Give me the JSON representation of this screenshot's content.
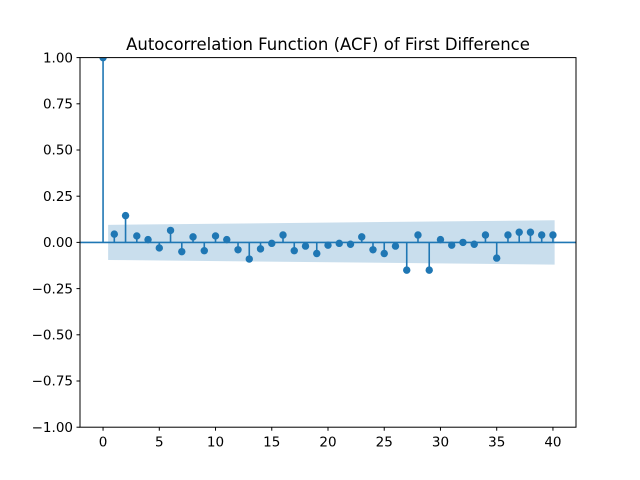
{
  "figure": {
    "background": "#ffffff",
    "accent_color": "#1f77b4",
    "band_opacity": 0.24,
    "spine_color": "#000000"
  },
  "chart_data": {
    "type": "stem",
    "title": "Autocorrelation Function (ACF) of First Difference",
    "xlabel": "",
    "ylabel": "",
    "x": [
      0,
      1,
      2,
      3,
      4,
      5,
      6,
      7,
      8,
      9,
      10,
      11,
      12,
      13,
      14,
      15,
      16,
      17,
      18,
      19,
      20,
      21,
      22,
      23,
      24,
      25,
      26,
      27,
      28,
      29,
      30,
      31,
      32,
      33,
      34,
      35,
      36,
      37,
      38,
      39,
      40
    ],
    "values": [
      1.0,
      0.045,
      0.145,
      0.035,
      0.015,
      -0.03,
      0.065,
      -0.05,
      0.03,
      -0.045,
      0.035,
      0.015,
      -0.04,
      -0.09,
      -0.035,
      -0.005,
      0.04,
      -0.045,
      -0.02,
      -0.06,
      -0.015,
      -0.005,
      -0.01,
      0.03,
      -0.04,
      -0.06,
      -0.02,
      -0.15,
      0.04,
      -0.15,
      0.015,
      -0.015,
      0.0,
      -0.01,
      0.04,
      -0.085,
      0.04,
      0.055,
      0.055,
      0.04,
      0.04
    ],
    "xlim": [
      -2.05,
      42.05
    ],
    "ylim": [
      -1.0,
      1.0
    ],
    "x_ticks": [
      0,
      5,
      10,
      15,
      20,
      25,
      30,
      35,
      40
    ],
    "x_tick_labels": [
      "0",
      "5",
      "10",
      "15",
      "20",
      "25",
      "30",
      "35",
      "40"
    ],
    "y_ticks": [
      1.0,
      0.75,
      0.5,
      0.25,
      0.0,
      -0.25,
      -0.5,
      -0.75,
      -1.0
    ],
    "y_tick_labels": [
      "1.00",
      "0.75",
      "0.50",
      "0.25",
      "0.00",
      "−0.25",
      "−0.50",
      "−0.75",
      "−1.00"
    ],
    "grid": false,
    "legend": null,
    "confidence_band": {
      "start_lag": 0.45,
      "end_lag": 40.15,
      "half_width_start": 0.095,
      "half_width_end": 0.12
    }
  }
}
